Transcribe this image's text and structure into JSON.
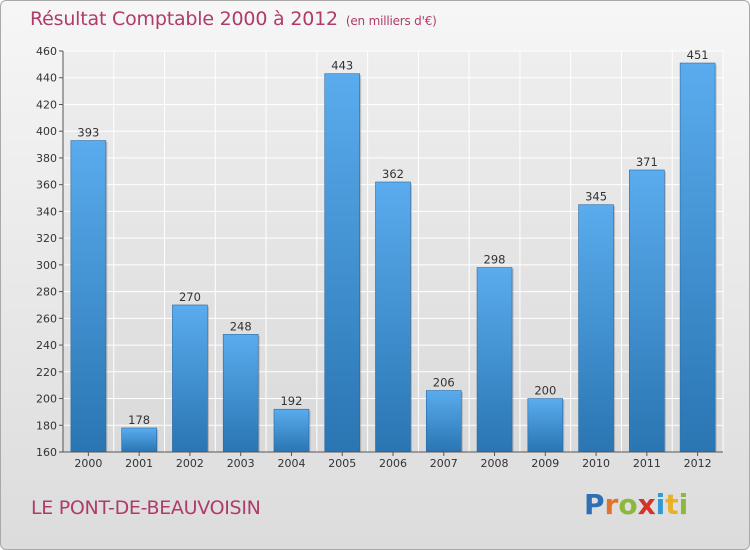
{
  "header": {
    "title": "Résultat Comptable 2000 à 2012",
    "unit": "(en milliers d'€)"
  },
  "footer": {
    "commune": "LE PONT-DE-BEAUVOISIN",
    "brand": "Proxiti"
  },
  "colors": {
    "bar_top": "#5aacee",
    "bar_bottom": "#2a75b2",
    "title": "#b03b6b",
    "grid": "#ffffff"
  },
  "chart_data": {
    "type": "bar",
    "title": "Résultat Comptable 2000 à 2012",
    "unit_label": "(en milliers d'€)",
    "xlabel": "",
    "ylabel": "",
    "categories": [
      "2000",
      "2001",
      "2002",
      "2003",
      "2004",
      "2005",
      "2006",
      "2007",
      "2008",
      "2009",
      "2010",
      "2011",
      "2012"
    ],
    "values": [
      393,
      178,
      270,
      248,
      192,
      443,
      362,
      206,
      298,
      200,
      345,
      371,
      451
    ],
    "ylim": [
      160,
      460
    ],
    "yticks": [
      160,
      180,
      200,
      220,
      240,
      260,
      280,
      300,
      320,
      340,
      360,
      380,
      400,
      420,
      440,
      460
    ],
    "grid": true,
    "legend": "none"
  }
}
